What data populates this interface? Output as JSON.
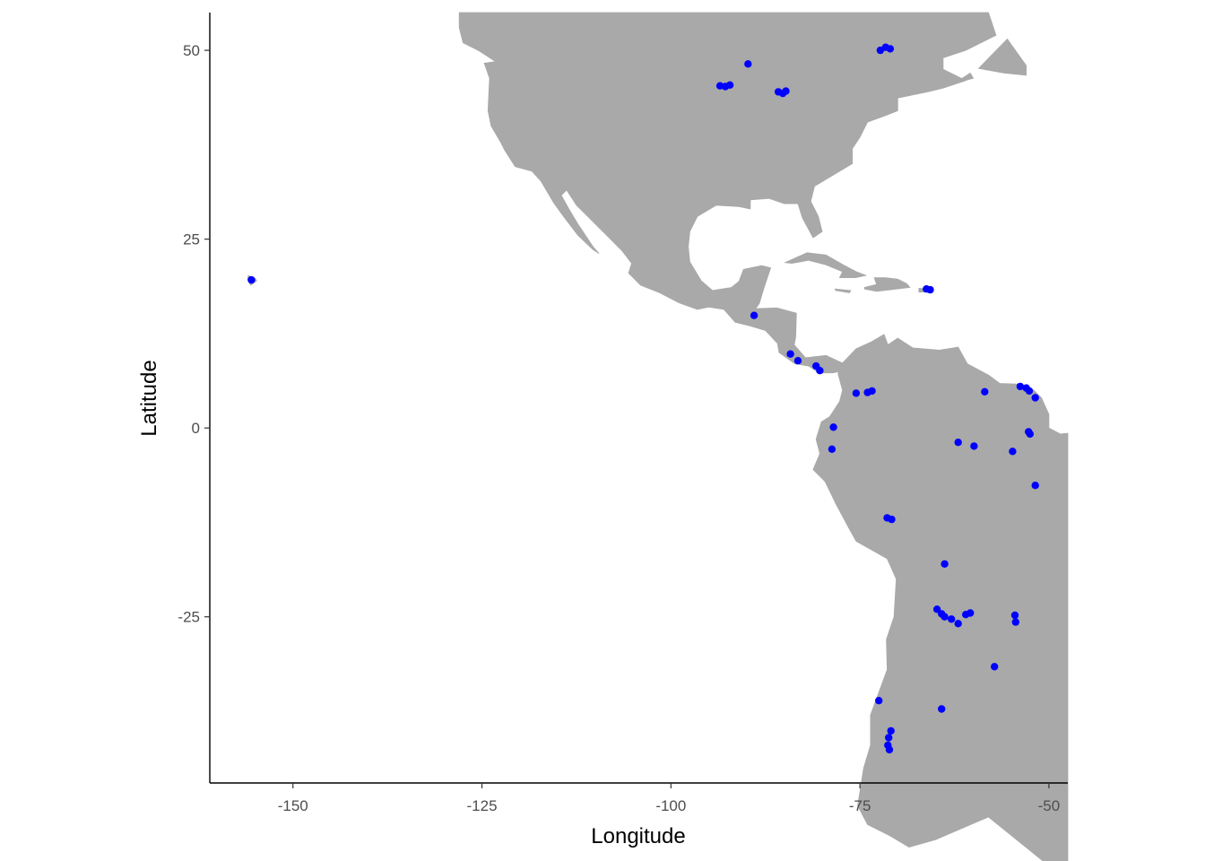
{
  "chart_data": {
    "type": "scatter",
    "title": "",
    "xlabel": "Longitude",
    "ylabel": "Latitude",
    "xlim": [
      -161,
      -47.5
    ],
    "ylim": [
      -47,
      55
    ],
    "xticks": [
      -150,
      -125,
      -100,
      -75,
      -50
    ],
    "yticks": [
      50,
      25,
      0,
      -25
    ],
    "xtick_labels": [
      "-150",
      "-125",
      "-100",
      "-75",
      "-50"
    ],
    "ytick_labels": [
      "50",
      "25",
      "0",
      "-25"
    ],
    "grid": false,
    "point_color": "#0000ff",
    "land_color": "#a9a9a9",
    "background_color": "#ffffff",
    "points": [
      {
        "x": -155.5,
        "y": 19.6
      },
      {
        "x": -93.5,
        "y": 45.3
      },
      {
        "x": -92.8,
        "y": 45.2
      },
      {
        "x": -92.2,
        "y": 45.4
      },
      {
        "x": -89.8,
        "y": 48.2
      },
      {
        "x": -85.8,
        "y": 44.5
      },
      {
        "x": -85.2,
        "y": 44.3
      },
      {
        "x": -84.8,
        "y": 44.6
      },
      {
        "x": -72.3,
        "y": 50.0
      },
      {
        "x": -71.6,
        "y": 50.4
      },
      {
        "x": -71.0,
        "y": 50.2
      },
      {
        "x": -66.2,
        "y": 18.4
      },
      {
        "x": -65.7,
        "y": 18.3
      },
      {
        "x": -89.0,
        "y": 14.9
      },
      {
        "x": -84.2,
        "y": 9.8
      },
      {
        "x": -83.2,
        "y": 8.9
      },
      {
        "x": -80.8,
        "y": 8.2
      },
      {
        "x": -80.3,
        "y": 7.6
      },
      {
        "x": -74.0,
        "y": 4.7
      },
      {
        "x": -73.4,
        "y": 4.9
      },
      {
        "x": -75.5,
        "y": 4.6
      },
      {
        "x": -78.5,
        "y": 0.1
      },
      {
        "x": -78.7,
        "y": -2.8
      },
      {
        "x": -58.5,
        "y": 4.8
      },
      {
        "x": -53.8,
        "y": 5.5
      },
      {
        "x": -53.0,
        "y": 5.3
      },
      {
        "x": -52.6,
        "y": 4.9
      },
      {
        "x": -51.8,
        "y": 4.0
      },
      {
        "x": -52.5,
        "y": -0.8
      },
      {
        "x": -52.7,
        "y": -0.5
      },
      {
        "x": -62.0,
        "y": -1.9
      },
      {
        "x": -59.9,
        "y": -2.4
      },
      {
        "x": -54.8,
        "y": -3.1
      },
      {
        "x": -51.8,
        "y": -7.6
      },
      {
        "x": -71.4,
        "y": -11.9
      },
      {
        "x": -70.8,
        "y": -12.1
      },
      {
        "x": -63.8,
        "y": -18.0
      },
      {
        "x": -64.8,
        "y": -24.0
      },
      {
        "x": -64.2,
        "y": -24.6
      },
      {
        "x": -63.8,
        "y": -25.0
      },
      {
        "x": -62.9,
        "y": -25.3
      },
      {
        "x": -62.0,
        "y": -25.9
      },
      {
        "x": -61.0,
        "y": -24.7
      },
      {
        "x": -60.4,
        "y": -24.5
      },
      {
        "x": -54.5,
        "y": -24.8
      },
      {
        "x": -54.4,
        "y": -25.7
      },
      {
        "x": -57.2,
        "y": -31.6
      },
      {
        "x": -72.5,
        "y": -36.1
      },
      {
        "x": -64.2,
        "y": -37.2
      },
      {
        "x": -70.9,
        "y": -40.1
      },
      {
        "x": -71.2,
        "y": -41.0
      },
      {
        "x": -71.3,
        "y": -42.0
      },
      {
        "x": -71.1,
        "y": -42.6
      }
    ]
  }
}
